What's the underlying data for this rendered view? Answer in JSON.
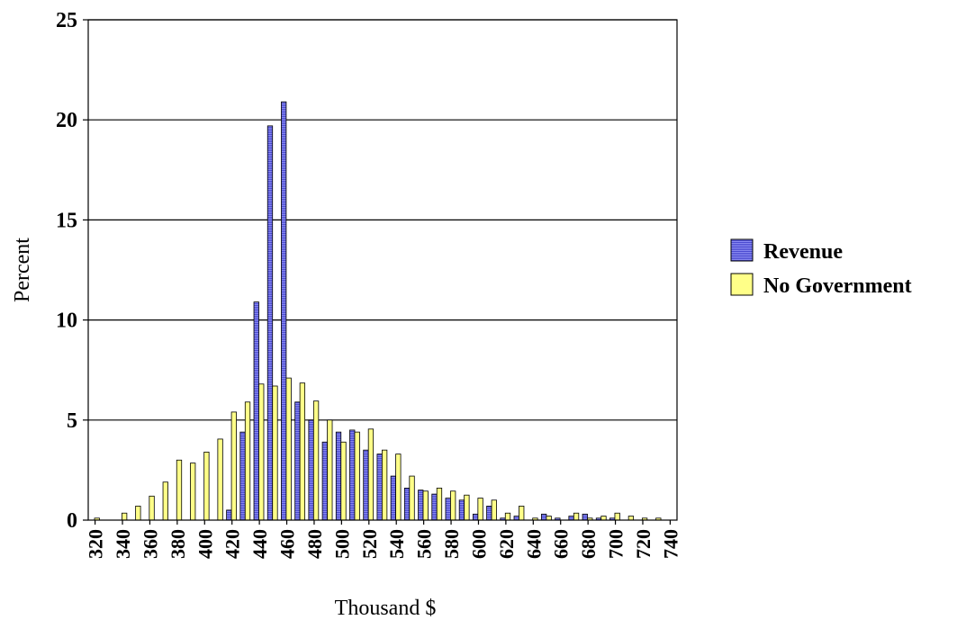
{
  "chart_data": {
    "type": "bar",
    "xlabel": "Thousand $",
    "ylabel": "Percent",
    "ylim": [
      0,
      25
    ],
    "yticks": [
      "0",
      "5",
      "10",
      "15",
      "20",
      "25"
    ],
    "categories": [
      "320",
      "330",
      "340",
      "350",
      "360",
      "370",
      "380",
      "390",
      "400",
      "410",
      "420",
      "430",
      "440",
      "450",
      "460",
      "470",
      "480",
      "490",
      "500",
      "510",
      "520",
      "530",
      "540",
      "550",
      "560",
      "570",
      "580",
      "590",
      "600",
      "610",
      "620",
      "630",
      "640",
      "650",
      "660",
      "670",
      "680",
      "690",
      "700",
      "710",
      "720",
      "730",
      "740"
    ],
    "xtick_labels": [
      "320",
      "340",
      "360",
      "380",
      "400",
      "420",
      "440",
      "460",
      "480",
      "500",
      "520",
      "540",
      "560",
      "580",
      "600",
      "620",
      "640",
      "660",
      "680",
      "700",
      "720",
      "740"
    ],
    "legend_position": "right",
    "grid": "horizontal",
    "series": [
      {
        "name": "Revenue",
        "color": "#7b7bea",
        "values": [
          0,
          0,
          0,
          0,
          0,
          0,
          0,
          0,
          0,
          0,
          0.5,
          4.4,
          10.9,
          19.7,
          20.9,
          5.9,
          5.0,
          3.9,
          4.4,
          4.5,
          3.5,
          3.3,
          2.2,
          1.6,
          1.5,
          1.3,
          1.1,
          1.0,
          0.3,
          0.7,
          0.1,
          0.2,
          0,
          0.3,
          0.1,
          0.2,
          0.3,
          0.1,
          0.1,
          0,
          0,
          0,
          0
        ]
      },
      {
        "name": "No Government",
        "color": "#ffff88",
        "values": [
          0.1,
          0,
          0.35,
          0.7,
          1.2,
          1.9,
          3.0,
          2.85,
          3.4,
          4.05,
          5.4,
          5.9,
          6.8,
          6.7,
          7.1,
          6.85,
          5.95,
          5.0,
          3.9,
          4.4,
          4.55,
          3.5,
          3.3,
          2.2,
          1.45,
          1.6,
          1.45,
          1.25,
          1.1,
          1.0,
          0.35,
          0.7,
          0.1,
          0.2,
          0,
          0.35,
          0.1,
          0.2,
          0.35,
          0.2,
          0.1,
          0.1,
          0
        ]
      }
    ]
  }
}
